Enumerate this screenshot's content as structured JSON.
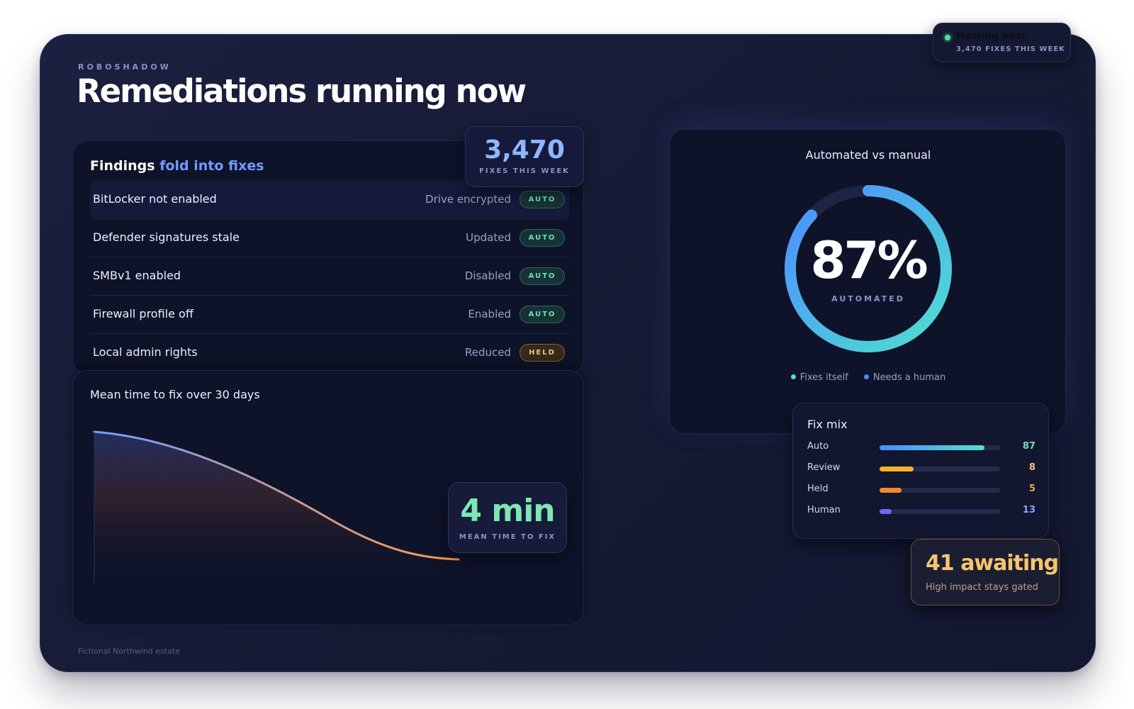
{
  "brand": "ROBOSHADOW",
  "title": "Remediations running now",
  "footnote": "Fictional Northwind estate",
  "healing": {
    "label": "Healing now",
    "sub": "3,470 FIXES THIS WEEK",
    "dot_color": "#4fe0a4"
  },
  "findings": {
    "title": "Findings",
    "title_accent": "fold into fixes",
    "rows": [
      {
        "name": "BitLocker not enabled",
        "status": "Drive encrypted",
        "badge": "AUTO"
      },
      {
        "name": "Defender signatures stale",
        "status": "Updated",
        "badge": "AUTO"
      },
      {
        "name": "SMBv1 enabled",
        "status": "Disabled",
        "badge": "AUTO"
      },
      {
        "name": "Firewall profile off",
        "status": "Enabled",
        "badge": "AUTO"
      },
      {
        "name": "Local admin rights",
        "status": "Reduced",
        "badge": "HELD"
      }
    ]
  },
  "fixes_card": {
    "value": "3,470",
    "label": "FIXES THIS WEEK"
  },
  "mean_time": {
    "title": "Mean time to fix over 30 days",
    "value": "4 min",
    "label": "MEAN TIME TO FIX",
    "line_colors": {
      "start": "#6f9cff",
      "end": "#f79a4a"
    }
  },
  "donut": {
    "title": "Automated vs manual",
    "percent": "87%",
    "percent_value": 87,
    "sub": "AUTOMATED",
    "legend": [
      {
        "label": "Fixes itself",
        "color": "#4fe0d0"
      },
      {
        "label": "Needs a human",
        "color": "#4d8cff"
      }
    ]
  },
  "fix_mix": {
    "title": "Fix mix",
    "rows": [
      {
        "label": "Auto",
        "value": "87",
        "fraction": 0.87,
        "color": "#4d8cff",
        "color2": "#4fe0d0",
        "value_color": "#6fe1b7"
      },
      {
        "label": "Review",
        "value": "8",
        "fraction": 0.28,
        "color": "#f5b324",
        "color2": "#f5b324",
        "value_color": "#f5c47c"
      },
      {
        "label": "Held",
        "value": "5",
        "fraction": 0.18,
        "color": "#f5862e",
        "color2": "#f5862e",
        "value_color": "#f5a05a"
      },
      {
        "label": "Human",
        "value": "13",
        "fraction": 0.1,
        "color": "#6a6cf0",
        "color2": "#6a6cf0",
        "value_color": "#8fa2ff"
      }
    ]
  },
  "awaiting": {
    "value": "41 awaiting",
    "sub": "High impact stays gated"
  }
}
